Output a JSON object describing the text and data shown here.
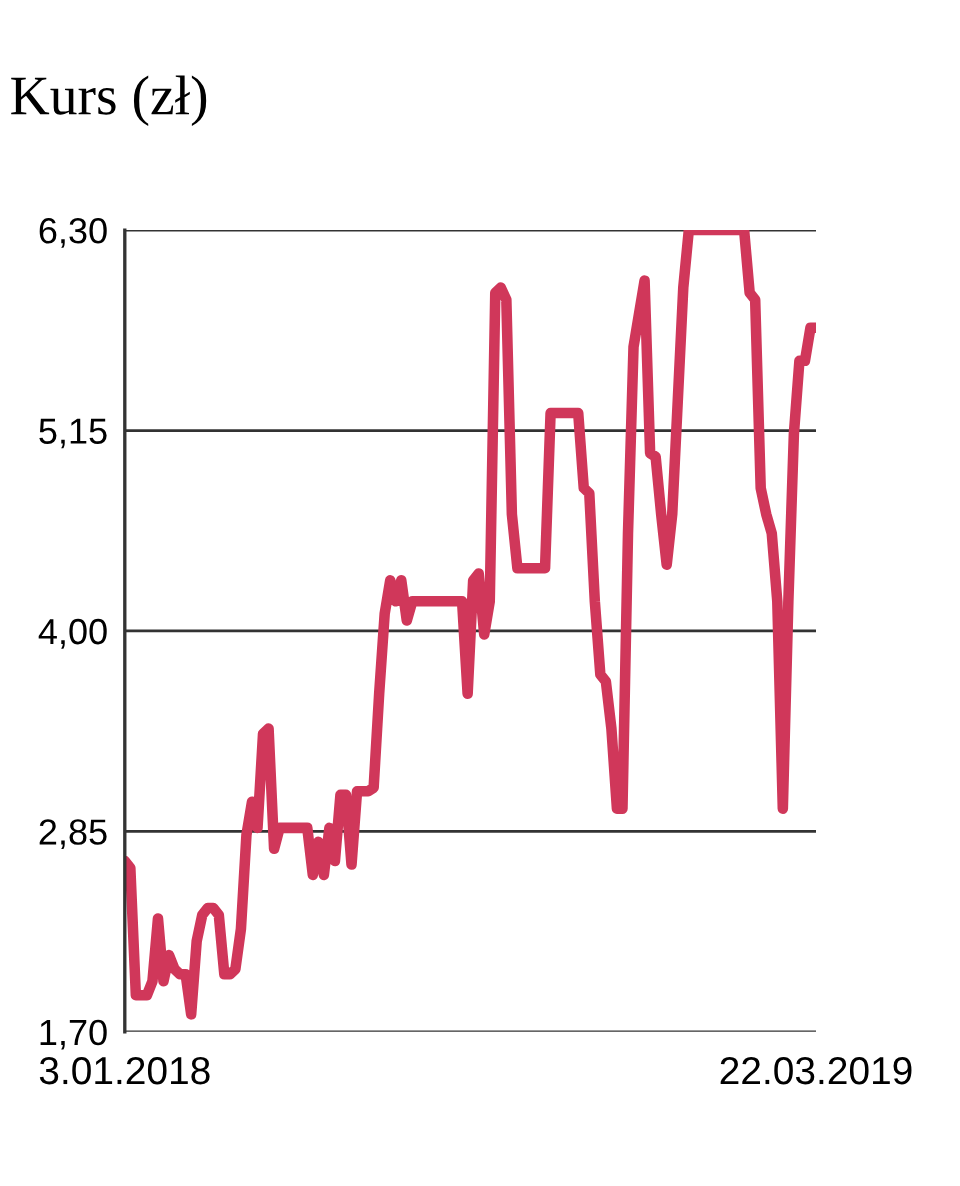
{
  "chart_data": {
    "type": "line",
    "title": "Kurs (zł)",
    "categories": [
      "3.01.2018",
      null,
      null,
      null,
      null,
      null,
      null,
      null,
      null,
      null,
      null,
      null,
      null,
      null,
      null,
      null,
      null,
      null,
      null,
      null,
      null,
      null,
      null,
      null,
      null,
      null,
      null,
      null,
      null,
      null,
      null,
      null,
      null,
      null,
      null,
      null,
      null,
      null,
      null,
      null,
      null,
      null,
      null,
      null,
      null,
      null,
      null,
      null,
      null,
      null,
      null,
      null,
      null,
      null,
      null,
      null,
      null,
      null,
      null,
      null,
      null,
      null,
      null,
      null,
      null,
      null,
      null,
      null,
      null,
      null,
      null,
      null,
      null,
      null,
      null,
      null,
      null,
      null,
      null,
      null,
      null,
      null,
      null,
      null,
      null,
      null,
      null,
      null,
      null,
      null,
      null,
      null,
      null,
      null,
      null,
      null,
      null,
      null,
      null,
      null,
      null,
      null,
      null,
      null,
      null,
      null,
      null,
      null,
      null,
      null,
      null,
      null,
      null,
      null,
      null,
      null,
      null,
      null,
      null,
      null,
      null,
      null,
      null,
      null,
      null,
      "22.03.2019"
    ],
    "series": [
      {
        "color": "#d0375a",
        "values": [
          2.68,
          2.64,
          1.91,
          1.91,
          1.91,
          1.99,
          2.35,
          1.99,
          2.14,
          2.06,
          2.03,
          2.03,
          1.8,
          2.22,
          2.37,
          2.41,
          2.41,
          2.37,
          2.03,
          2.03,
          2.06,
          2.29,
          2.83,
          3.02,
          2.87,
          3.41,
          3.44,
          2.75,
          2.87,
          2.87,
          2.87,
          2.87,
          2.87,
          2.87,
          2.6,
          2.79,
          2.6,
          2.87,
          2.68,
          3.06,
          3.06,
          2.66,
          3.08,
          3.08,
          3.08,
          3.1,
          3.64,
          4.1,
          4.29,
          4.17,
          4.29,
          4.06,
          4.17,
          4.17,
          4.17,
          4.17,
          4.17,
          4.17,
          4.17,
          4.17,
          4.17,
          4.17,
          3.64,
          4.29,
          4.33,
          3.98,
          4.17,
          5.94,
          5.97,
          5.9,
          4.67,
          4.36,
          4.36,
          4.36,
          4.36,
          4.36,
          4.36,
          5.25,
          5.25,
          5.25,
          5.25,
          5.25,
          5.25,
          4.82,
          4.79,
          4.17,
          3.75,
          3.71,
          3.44,
          2.98,
          2.98,
          4.56,
          5.63,
          5.82,
          6.01,
          5.02,
          5.0,
          4.67,
          4.38,
          4.67,
          5.32,
          5.97,
          6.3,
          6.3,
          6.3,
          6.3,
          6.3,
          6.3,
          6.3,
          6.3,
          6.3,
          6.3,
          6.3,
          5.94,
          5.9,
          4.82,
          4.67,
          4.56,
          4.17,
          2.98,
          4.17,
          5.13,
          5.55,
          5.55,
          5.74,
          5.74
        ]
      }
    ],
    "ylim": [
      1.7,
      6.3
    ],
    "yticks": [
      {
        "value": 1.7,
        "label": "1,70"
      },
      {
        "value": 2.85,
        "label": "2,85"
      },
      {
        "value": 4.0,
        "label": "4,00"
      },
      {
        "value": 5.15,
        "label": "5,15"
      },
      {
        "value": 6.3,
        "label": "6,30"
      }
    ],
    "grid": "y",
    "legend": false,
    "marker": "none",
    "line_style": "solid"
  }
}
